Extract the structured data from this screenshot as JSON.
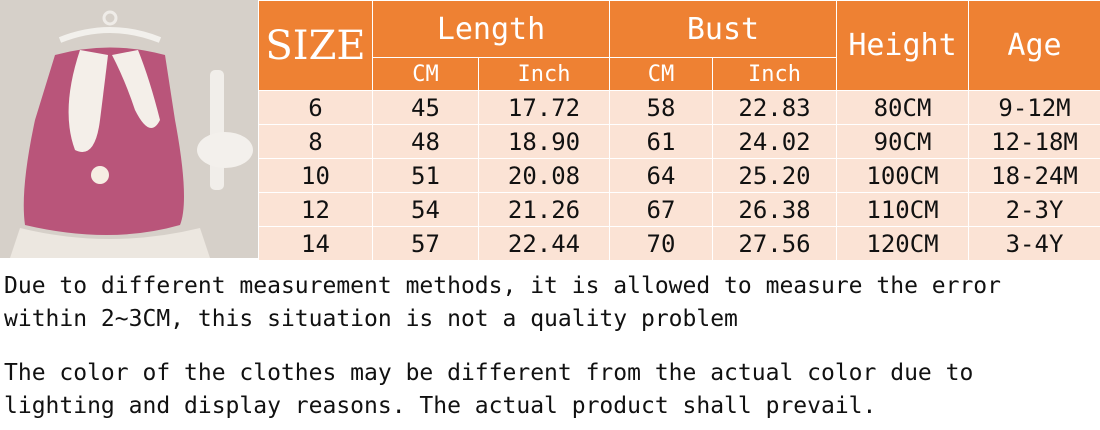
{
  "table": {
    "headers": {
      "size": "SIZE",
      "length": "Length",
      "bust": "Bust",
      "height": "Height",
      "age": "Age",
      "length_cm": "CM",
      "length_inch": "Inch",
      "bust_cm": "CM",
      "bust_inch": "Inch"
    },
    "rows": [
      {
        "size": "6",
        "length_cm": "45",
        "length_inch": "17.72",
        "bust_cm": "58",
        "bust_inch": "22.83",
        "height": "80CM",
        "age": "9-12M"
      },
      {
        "size": "8",
        "length_cm": "48",
        "length_inch": "18.90",
        "bust_cm": "61",
        "bust_inch": "24.02",
        "height": "90CM",
        "age": "12-18M"
      },
      {
        "size": "10",
        "length_cm": "51",
        "length_inch": "20.08",
        "bust_cm": "64",
        "bust_inch": "25.20",
        "height": "100CM",
        "age": "18-24M"
      },
      {
        "size": "12",
        "length_cm": "54",
        "length_inch": "21.26",
        "bust_cm": "67",
        "bust_inch": "26.38",
        "height": "110CM",
        "age": "2-3Y"
      },
      {
        "size": "14",
        "length_cm": "57",
        "length_inch": "22.44",
        "bust_cm": "70",
        "bust_inch": "27.56",
        "height": "120CM",
        "age": "3-4Y"
      }
    ]
  },
  "notes": {
    "line1": "Due to different measurement methods, it is allowed to measure the error",
    "line2": "within 2~3CM, this situation is not a quality problem",
    "line3": "The color of the clothes may be different from the actual color due to",
    "line4": "lighting and display reasons. The actual product shall prevail."
  },
  "colors": {
    "header_bg": "#ee8133",
    "row_bg": "#fbe3d5",
    "dress": "#b9557a"
  }
}
